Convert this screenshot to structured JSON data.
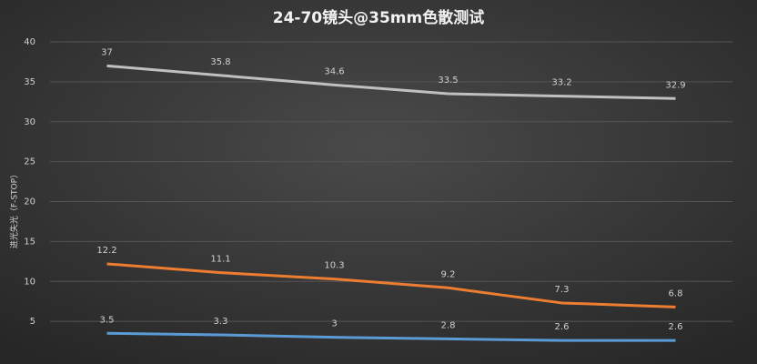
{
  "chart_data": {
    "type": "line",
    "title": "24-70镜头@35mm色散测试",
    "y_label": "进光失光（F-STOP）",
    "categories": [
      null,
      null,
      null,
      null,
      null,
      null
    ],
    "series": [
      {
        "color": "#c0c0c0",
        "values": [
          37,
          35.8,
          34.6,
          33.5,
          33.2,
          32.9
        ]
      },
      {
        "color": "#ed7d31",
        "values": [
          12.2,
          11.1,
          10.3,
          9.2,
          7.3,
          6.8
        ]
      },
      {
        "color": "#5b9bd5",
        "values": [
          3.5,
          3.3,
          3,
          2.8,
          2.6,
          2.6
        ]
      }
    ],
    "ylim": [
      0,
      40
    ],
    "yticks": [
      5,
      10,
      15,
      20,
      25,
      30,
      35,
      40
    ],
    "grid": true
  }
}
